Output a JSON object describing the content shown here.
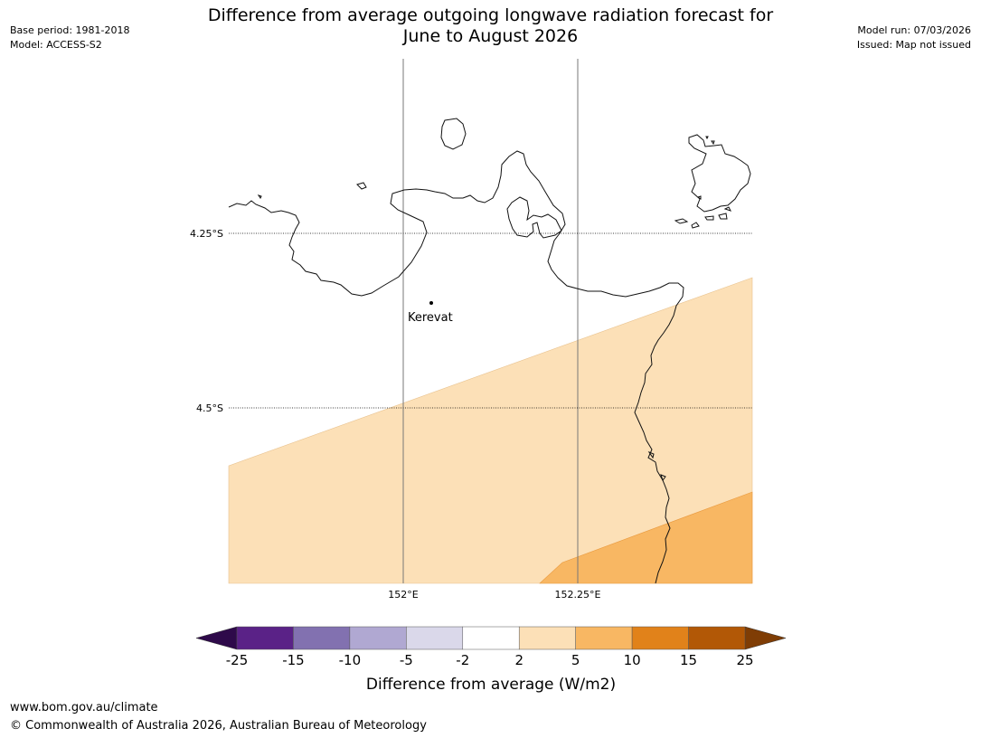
{
  "header": {
    "title_line1": "Difference from average outgoing longwave radiation forecast for",
    "title_line2": "June to August 2026",
    "base_period": "Base period: 1981-2018",
    "model": "Model: ACCESS-S2",
    "model_run": "Model run: 07/03/2026",
    "issued": "Issued: Map not issued"
  },
  "map": {
    "lat_labels": [
      "4.25°S",
      "4.5°S"
    ],
    "lon_labels": [
      "152°E",
      "152.25°E"
    ],
    "place": {
      "name": "Kerevat"
    }
  },
  "colorbar": {
    "label": "Difference from average (W/m2)",
    "ticks": [
      "-25",
      "-15",
      "-10",
      "-5",
      "-2",
      "2",
      "5",
      "10",
      "15",
      "25"
    ],
    "colors": [
      "#5a2287",
      "#8271b0",
      "#b0a8d2",
      "#dad8ea",
      "#ffffff",
      "#fce0b7",
      "#f8b763",
      "#e1821a",
      "#b25806"
    ],
    "under_color": "#2e0a4a",
    "over_color": "#7f3d05"
  },
  "footer": {
    "url": "www.bom.gov.au/climate",
    "copyright": "© Commonwealth of Australia 2026, Australian Bureau of Meteorology"
  }
}
